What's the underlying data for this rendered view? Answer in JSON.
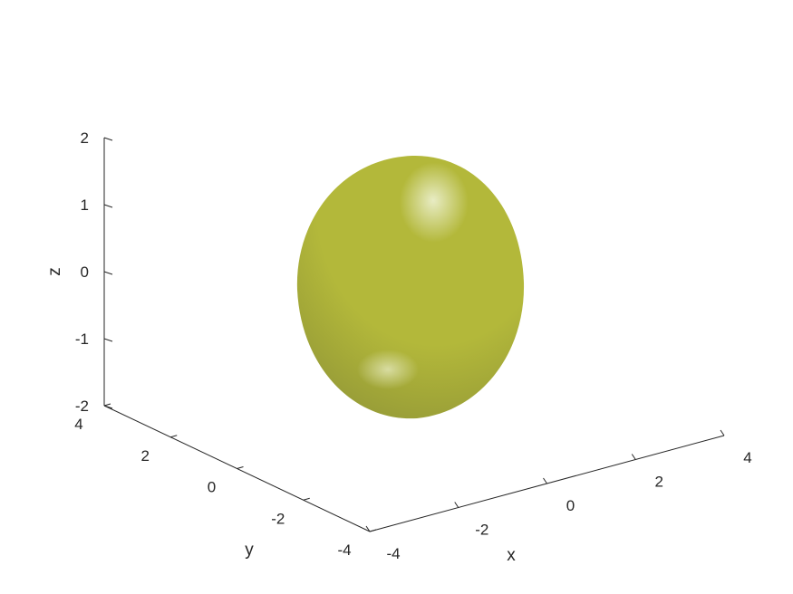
{
  "chart_data": {
    "type": "surface3d",
    "title": "",
    "xlabel": "x",
    "ylabel": "y",
    "zlabel": "z",
    "xlim": [
      -4,
      4
    ],
    "ylim": [
      -4,
      4
    ],
    "zlim": [
      -2,
      2
    ],
    "x_ticks": [
      "-4",
      "-2",
      "0",
      "2",
      "4"
    ],
    "y_ticks": [
      "-4",
      "-2",
      "0",
      "2",
      "4"
    ],
    "z_ticks": [
      "-2",
      "-1",
      "0",
      "1",
      "2"
    ],
    "grid": false,
    "surface": {
      "shape": "ellipsoid",
      "color": "#b3b83a",
      "highlight_color": "#e8ecc4",
      "shadow_color": "#8d9236"
    }
  }
}
